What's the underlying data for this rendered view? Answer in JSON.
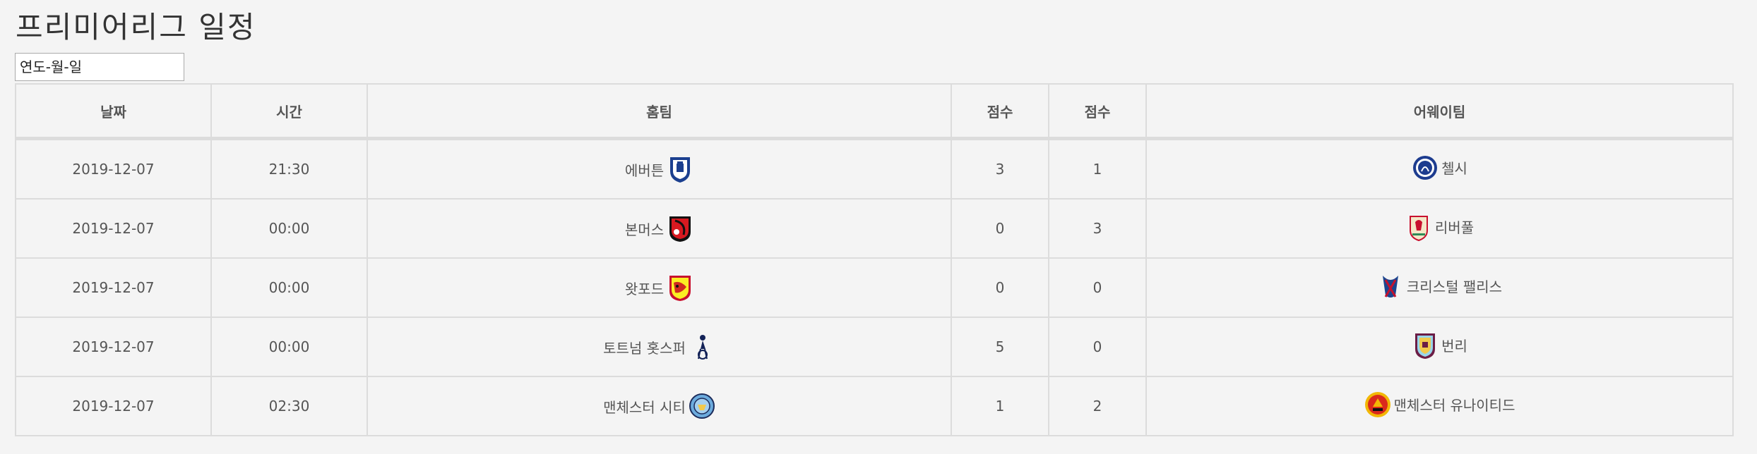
{
  "page": {
    "title": "프리미어리그 일정"
  },
  "date_filter": {
    "placeholder": "연도-월-일"
  },
  "table": {
    "headers": {
      "date": "날짜",
      "time": "시간",
      "home": "홈팀",
      "home_score": "점수",
      "away_score": "점수",
      "away": "어웨이팀"
    },
    "rows": [
      {
        "date": "2019-12-07",
        "time": "21:30",
        "home_team": "에버튼",
        "home_crest": "everton-crest-icon",
        "home_score": "3",
        "away_score": "1",
        "away_team": "첼시",
        "away_crest": "chelsea-crest-icon"
      },
      {
        "date": "2019-12-07",
        "time": "00:00",
        "home_team": "본머스",
        "home_crest": "bournemouth-crest-icon",
        "home_score": "0",
        "away_score": "3",
        "away_team": "리버풀",
        "away_crest": "liverpool-crest-icon"
      },
      {
        "date": "2019-12-07",
        "time": "00:00",
        "home_team": "왓포드",
        "home_crest": "watford-crest-icon",
        "home_score": "0",
        "away_score": "0",
        "away_team": "크리스털 팰리스",
        "away_crest": "crystal-palace-crest-icon"
      },
      {
        "date": "2019-12-07",
        "time": "00:00",
        "home_team": "토트넘 홋스퍼",
        "home_crest": "tottenham-crest-icon",
        "home_score": "5",
        "away_score": "0",
        "away_team": "번리",
        "away_crest": "burnley-crest-icon"
      },
      {
        "date": "2019-12-07",
        "time": "02:30",
        "home_team": "맨체스터 시티",
        "home_crest": "manchester-city-crest-icon",
        "home_score": "1",
        "away_score": "2",
        "away_team": "맨체스터 유나이티드",
        "away_crest": "manchester-united-crest-icon"
      }
    ]
  },
  "colors": {
    "background": "#f4f4f4",
    "border": "#dcdcdc",
    "text": "#555555"
  }
}
